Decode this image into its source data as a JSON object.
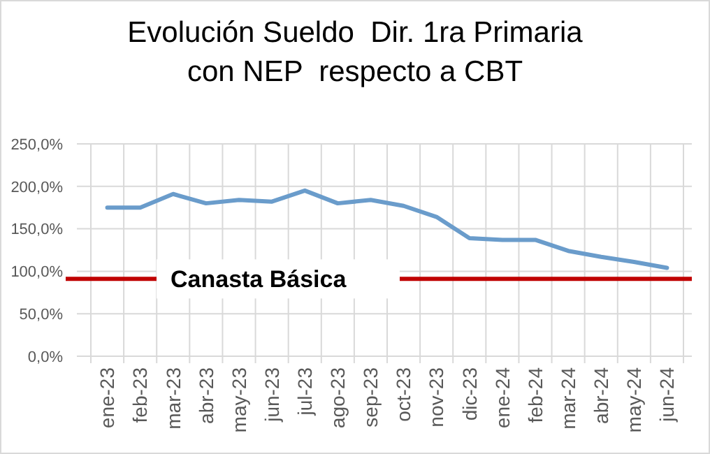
{
  "chart_data": {
    "type": "line",
    "title": "Evolución Sueldo  Dir. 1ra Primaria\ncon NEP  respecto a CBT",
    "categories": [
      "ene-23",
      "feb-23",
      "mar-23",
      "abr-23",
      "may-23",
      "jun-23",
      "jul-23",
      "ago-23",
      "sep-23",
      "oct-23",
      "nov-23",
      "dic-23",
      "ene-24",
      "feb-24",
      "mar-24",
      "abr-24",
      "may-24",
      "jun-24"
    ],
    "series": [
      {
        "color": "#6a9ccb",
        "values": [
          175,
          175,
          191,
          180,
          184,
          182,
          195,
          180,
          184,
          177,
          164,
          139,
          137,
          137,
          124,
          117,
          111,
          104
        ]
      }
    ],
    "ylim": [
      0,
      250
    ],
    "yticks": [
      {
        "value": 0,
        "label": "0,0%"
      },
      {
        "value": 50,
        "label": "50,0%"
      },
      {
        "value": 100,
        "label": "100,0%"
      },
      {
        "value": 150,
        "label": "150,0%"
      },
      {
        "value": 200,
        "label": "200,0%"
      },
      {
        "value": 250,
        "label": "250,0%"
      }
    ],
    "grid": true,
    "marker": "none",
    "line_style": "solid",
    "ref_lines": [
      {
        "axis": "y",
        "value": 91,
        "label": "Canasta Básica",
        "color": "#c00000"
      }
    ]
  }
}
